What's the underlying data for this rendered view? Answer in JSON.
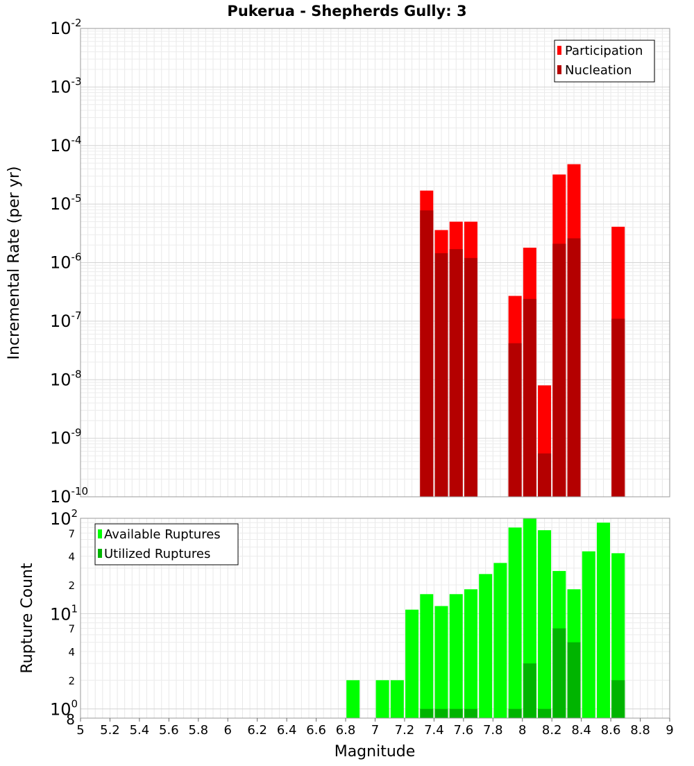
{
  "title": "Pukerua - Shepherds Gully: 3",
  "colors": {
    "participation": "#ff0000",
    "nucleation": "#b40000",
    "available": "#00ff00",
    "utilized": "#00b400"
  },
  "chart_data": [
    {
      "type": "bar",
      "ylabel": "Incremental Rate (per yr)",
      "yscale": "log",
      "ylim": [
        1e-10,
        0.01
      ],
      "xlim": [
        5,
        9
      ],
      "grid": true,
      "legend": {
        "placement": "top-right",
        "entries": [
          "Participation",
          "Nucleation"
        ]
      },
      "y_ticks": [
        {
          "value": 1e-10,
          "base": "10",
          "exp": "-10"
        },
        {
          "value": 1e-09,
          "base": "10",
          "exp": "-9"
        },
        {
          "value": 1e-08,
          "base": "10",
          "exp": "-8"
        },
        {
          "value": 1e-07,
          "base": "10",
          "exp": "-7"
        },
        {
          "value": 1e-06,
          "base": "10",
          "exp": "-6"
        },
        {
          "value": 1e-05,
          "base": "10",
          "exp": "-5"
        },
        {
          "value": 0.0001,
          "base": "10",
          "exp": "-4"
        },
        {
          "value": 0.001,
          "base": "10",
          "exp": "-3"
        },
        {
          "value": 0.01,
          "base": "10",
          "exp": "-2"
        }
      ],
      "x": [
        7.35,
        7.45,
        7.55,
        7.65,
        7.95,
        8.05,
        8.15,
        8.25,
        8.35,
        8.65
      ],
      "series": [
        {
          "name": "Participation",
          "values": [
            1.7e-05,
            3.6e-06,
            5e-06,
            5e-06,
            2.7e-07,
            1.8e-06,
            8e-09,
            3.2e-05,
            4.8e-05,
            4.1e-06
          ]
        },
        {
          "name": "Nucleation",
          "values": [
            7.8e-06,
            1.45e-06,
            1.7e-06,
            1.2e-06,
            4.2e-08,
            2.4e-07,
            5.5e-10,
            2.1e-06,
            2.6e-06,
            1.1e-07
          ]
        }
      ]
    },
    {
      "type": "bar",
      "ylabel": "Rupture Count",
      "xlabel": "Magnitude",
      "yscale": "log",
      "ylim": [
        0.8,
        100
      ],
      "xlim": [
        5,
        9
      ],
      "grid": true,
      "legend": {
        "placement": "top-left",
        "entries": [
          "Available Ruptures",
          "Utilized Ruptures"
        ]
      },
      "y_major_ticks": [
        {
          "value": 1,
          "base": "10",
          "exp": "0"
        },
        {
          "value": 10,
          "base": "10",
          "exp": "1"
        },
        {
          "value": 100,
          "base": "10",
          "exp": "2"
        }
      ],
      "y_minor_ticks": [
        {
          "value": 0.8,
          "label": "8"
        },
        {
          "value": 2,
          "label": "2"
        },
        {
          "value": 4,
          "label": "4"
        },
        {
          "value": 7,
          "label": "7"
        },
        {
          "value": 20,
          "label": "2"
        },
        {
          "value": 40,
          "label": "4"
        },
        {
          "value": 70,
          "label": "7"
        }
      ],
      "x": [
        6.85,
        7.05,
        7.15,
        7.25,
        7.35,
        7.45,
        7.55,
        7.65,
        7.75,
        7.85,
        7.95,
        8.05,
        8.15,
        8.25,
        8.35,
        8.45,
        8.55,
        8.65
      ],
      "series": [
        {
          "name": "Available Ruptures",
          "values": [
            2,
            2,
            2,
            11,
            16,
            12,
            16,
            18,
            26,
            34,
            80,
            100,
            75,
            28,
            18,
            45,
            90,
            43
          ]
        },
        {
          "name": "Utilized Ruptures",
          "values": [
            0,
            0,
            0,
            0,
            1,
            1,
            1,
            1,
            0,
            0,
            1,
            3,
            1,
            7,
            5,
            0,
            0,
            2
          ]
        }
      ],
      "x_tick_labels": [
        "5",
        "5.2",
        "5.4",
        "5.6",
        "5.8",
        "6",
        "6.2",
        "6.4",
        "6.6",
        "6.8",
        "7",
        "7.2",
        "7.4",
        "7.6",
        "7.8",
        "8",
        "8.2",
        "8.4",
        "8.6",
        "8.8",
        "9"
      ]
    }
  ]
}
